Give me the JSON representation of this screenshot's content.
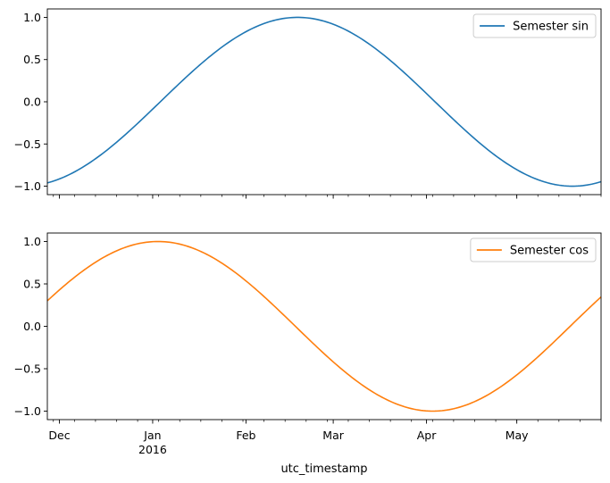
{
  "chart_data": [
    {
      "type": "line",
      "panel": "top",
      "series": [
        {
          "name": "Semester sin",
          "color": "#1f77b4",
          "function": "sin",
          "x": [
            "2015-11-27",
            "2015-12-15",
            "2016-01-01",
            "2016-01-15",
            "2016-02-01",
            "2016-02-17",
            "2016-03-01",
            "2016-03-15",
            "2016-04-01",
            "2016-04-15",
            "2016-05-01",
            "2016-05-19",
            "2016-05-29"
          ],
          "values": [
            -0.92,
            -0.63,
            -0.13,
            0.31,
            0.77,
            1.0,
            0.91,
            0.6,
            0.04,
            -0.42,
            -0.83,
            -1.0,
            -0.93
          ]
        }
      ],
      "yticks": [
        "1.0",
        "0.5",
        "0.0",
        "−0.5",
        "−1.0"
      ],
      "ylim": [
        -1.1,
        1.1
      ],
      "legend": "top-right",
      "grid": false
    },
    {
      "type": "line",
      "panel": "bottom",
      "series": [
        {
          "name": "Semester cos",
          "color": "#ff7f0e",
          "function": "cos",
          "x": [
            "2015-11-27",
            "2015-12-15",
            "2016-01-01",
            "2016-01-15",
            "2016-02-01",
            "2016-02-17",
            "2016-03-01",
            "2016-03-15",
            "2016-04-01",
            "2016-04-15",
            "2016-05-01",
            "2016-05-19",
            "2016-05-29"
          ],
          "values": [
            0.39,
            0.78,
            0.99,
            0.95,
            0.64,
            0.03,
            -0.41,
            -0.8,
            -1.0,
            -0.91,
            -0.56,
            -0.01,
            0.38
          ]
        }
      ],
      "yticks": [
        "1.0",
        "0.5",
        "0.0",
        "−0.5",
        "−1.0"
      ],
      "ylim": [
        -1.1,
        1.1
      ],
      "legend": "top-right",
      "grid": false
    }
  ],
  "x_axis": {
    "label": "utc_timestamp",
    "range": [
      "2015-11-27",
      "2016-05-29"
    ],
    "major_ticks": [
      {
        "date": "2015-12-01",
        "label": "Dec",
        "sublabel": ""
      },
      {
        "date": "2016-01-01",
        "label": "Jan",
        "sublabel": "2016"
      },
      {
        "date": "2016-02-01",
        "label": "Feb",
        "sublabel": ""
      },
      {
        "date": "2016-03-01",
        "label": "Mar",
        "sublabel": ""
      },
      {
        "date": "2016-04-01",
        "label": "Apr",
        "sublabel": ""
      },
      {
        "date": "2016-05-01",
        "label": "May",
        "sublabel": ""
      }
    ],
    "minor_ticks": "weekly"
  }
}
